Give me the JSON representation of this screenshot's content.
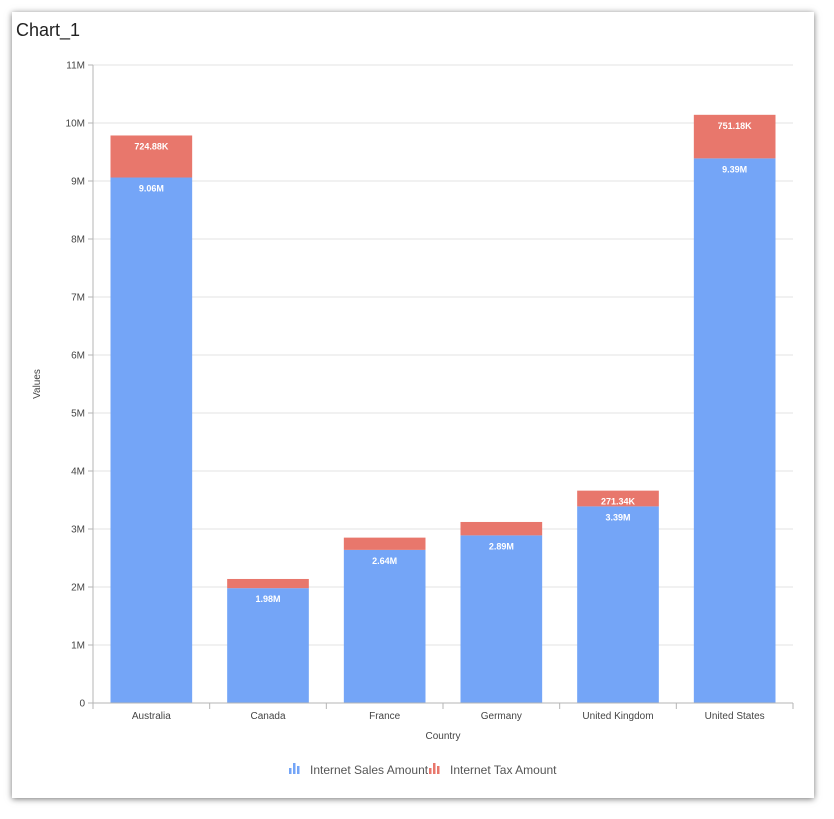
{
  "title": "Chart_1",
  "chart_data": {
    "type": "bar",
    "stacked": true,
    "categories": [
      "Australia",
      "Canada",
      "France",
      "Germany",
      "United Kingdom",
      "United States"
    ],
    "series": [
      {
        "name": "Internet Sales Amount",
        "color": "#74a5f7",
        "values": [
          9060000,
          1980000,
          2640000,
          2890000,
          3390000,
          9390000
        ],
        "labels": [
          "9.06M",
          "1.98M",
          "2.64M",
          "2.89M",
          "3.39M",
          "9.39M"
        ]
      },
      {
        "name": "Internet Tax Amount",
        "color": "#e8776c",
        "values": [
          724880,
          158400,
          211200,
          231200,
          271340,
          751180
        ],
        "labels": [
          "724.88K",
          "",
          "",
          "",
          "271.34K",
          "751.18K"
        ]
      }
    ],
    "xlabel": "Country",
    "ylabel": "Values",
    "ylim": [
      0,
      11000000
    ],
    "yticks": [
      0,
      1000000,
      2000000,
      3000000,
      4000000,
      5000000,
      6000000,
      7000000,
      8000000,
      9000000,
      10000000,
      11000000
    ],
    "ytick_labels": [
      "0",
      "1M",
      "2M",
      "3M",
      "4M",
      "5M",
      "6M",
      "7M",
      "8M",
      "9M",
      "10M",
      "11M"
    ],
    "grid": true,
    "legend_position": "bottom"
  }
}
